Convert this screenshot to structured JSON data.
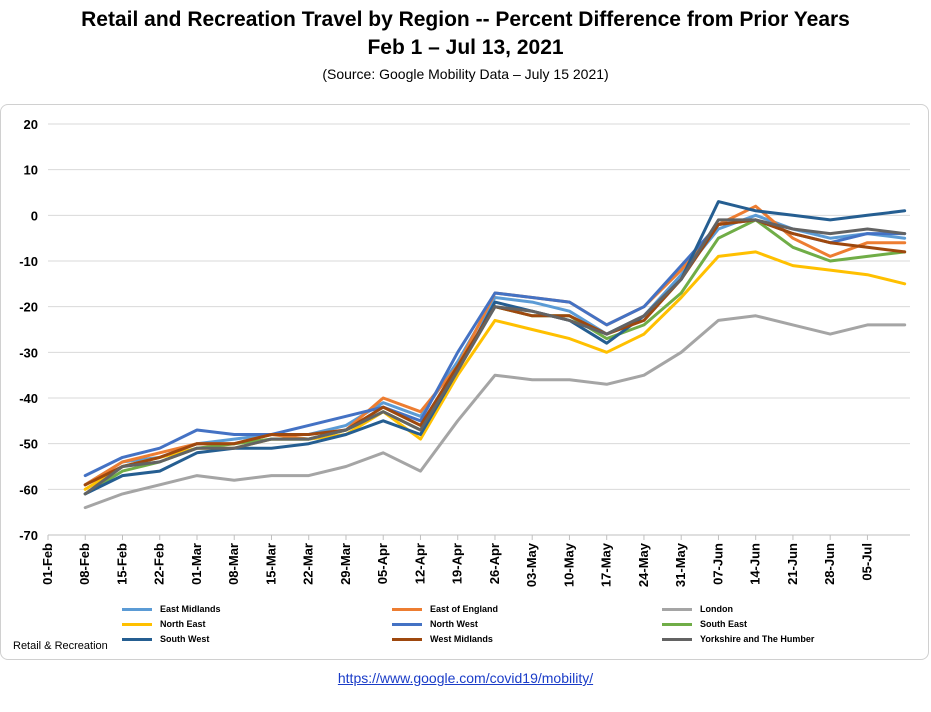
{
  "header": {
    "title": "Retail and Recreation Travel by Region -- Percent Difference from Prior Years",
    "subtitle": "Feb 1 – Jul 13, 2021",
    "source": "(Source: Google Mobility Data – July 15 2021)"
  },
  "corner_label": "Retail & Recreation",
  "footer_link": "https://www.google.com/covid19/mobility/",
  "chart_data": {
    "type": "line",
    "x_tick_labels": [
      "01-Feb",
      "08-Feb",
      "15-Feb",
      "22-Feb",
      "01-Mar",
      "08-Mar",
      "15-Mar",
      "22-Mar",
      "29-Mar",
      "05-Apr",
      "12-Apr",
      "19-Apr",
      "26-Apr",
      "03-May",
      "10-May",
      "17-May",
      "24-May",
      "31-May",
      "07-Jun",
      "14-Jun",
      "21-Jun",
      "28-Jun",
      "05-Jul"
    ],
    "x_range_days": [
      0,
      162
    ],
    "ylim": [
      -70,
      20
    ],
    "y_ticks": [
      20,
      10,
      0,
      -10,
      -20,
      -30,
      -40,
      -50,
      -60,
      -70
    ],
    "grid": "horizontal",
    "legend_position": "bottom",
    "x_day_points": [
      7,
      14,
      21,
      28,
      35,
      42,
      49,
      56,
      63,
      70,
      77,
      84,
      91,
      98,
      105,
      112,
      119,
      126,
      133,
      140,
      147,
      154,
      161
    ],
    "series": [
      {
        "name": "East Midlands",
        "color": "#5b9bd5",
        "values": [
          -59,
          -54,
          -53,
          -50,
          -49,
          -48,
          -48,
          -46,
          -41,
          -44,
          -32,
          -18,
          -19,
          -21,
          -26,
          -22,
          -13,
          -3,
          0,
          -3,
          -5,
          -4,
          -5
        ]
      },
      {
        "name": "East of England",
        "color": "#ed7d31",
        "values": [
          -59,
          -54,
          -52,
          -50,
          -50,
          -48,
          -49,
          -47,
          -40,
          -43,
          -33,
          -17,
          -18,
          -19,
          -24,
          -20,
          -12,
          -2,
          2,
          -5,
          -9,
          -6,
          -6
        ]
      },
      {
        "name": "London",
        "color": "#a5a5a5",
        "values": [
          -64,
          -61,
          -59,
          -57,
          -58,
          -57,
          -57,
          -55,
          -52,
          -56,
          -45,
          -35,
          -36,
          -36,
          -37,
          -35,
          -30,
          -23,
          -22,
          -24,
          -26,
          -24,
          -24
        ]
      },
      {
        "name": "North East",
        "color": "#ffc000",
        "values": [
          -60,
          -55,
          -53,
          -51,
          -51,
          -49,
          -49,
          -48,
          -43,
          -49,
          -35,
          -23,
          -25,
          -27,
          -30,
          -26,
          -18,
          -9,
          -8,
          -11,
          -12,
          -13,
          -15
        ]
      },
      {
        "name": "North West",
        "color": "#4472c4",
        "values": [
          -57,
          -53,
          -51,
          -47,
          -48,
          -48,
          -46,
          -44,
          -42,
          -45,
          -30,
          -17,
          -18,
          -19,
          -24,
          -20,
          -11,
          -2,
          -1,
          -4,
          -6,
          -4,
          -4
        ]
      },
      {
        "name": "South East",
        "color": "#70ad47",
        "values": [
          -61,
          -56,
          -54,
          -51,
          -50,
          -49,
          -49,
          -47,
          -43,
          -47,
          -33,
          -20,
          -22,
          -22,
          -27,
          -24,
          -17,
          -5,
          -1,
          -7,
          -10,
          -9,
          -8
        ]
      },
      {
        "name": "South West",
        "color": "#255e91",
        "values": [
          -61,
          -57,
          -56,
          -52,
          -51,
          -51,
          -50,
          -48,
          -45,
          -48,
          -34,
          -19,
          -21,
          -23,
          -28,
          -22,
          -14,
          3,
          1,
          0,
          -1,
          0,
          1
        ]
      },
      {
        "name": "West Midlands",
        "color": "#9e480e",
        "values": [
          -59,
          -55,
          -53,
          -50,
          -50,
          -48,
          -48,
          -47,
          -42,
          -46,
          -33,
          -20,
          -22,
          -22,
          -26,
          -23,
          -14,
          -2,
          -1,
          -4,
          -6,
          -7,
          -8
        ]
      },
      {
        "name": "Yorkshire and The Humber",
        "color": "#636363",
        "values": [
          -61,
          -55,
          -54,
          -51,
          -51,
          -49,
          -49,
          -47,
          -43,
          -47,
          -34,
          -20,
          -21,
          -23,
          -26,
          -22,
          -14,
          -1,
          -1,
          -3,
          -4,
          -3,
          -4
        ]
      }
    ]
  }
}
